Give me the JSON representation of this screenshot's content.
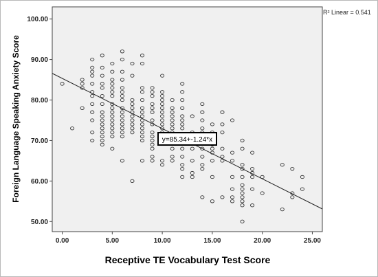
{
  "chart_data": {
    "type": "scatter",
    "title": "",
    "xlabel": "Receptive TE Vocabulary Test Score",
    "ylabel": "Foreign Language Speaking Anxiety Score",
    "xlim": [
      -1.0,
      26.0
    ],
    "ylim": [
      47.5,
      103.0
    ],
    "x_ticks": [
      0,
      5,
      10,
      15,
      20,
      25
    ],
    "x_tick_labels": [
      "0.00",
      "5.00",
      "10.00",
      "15.00",
      "20.00",
      "25.00"
    ],
    "y_ticks": [
      50,
      60,
      70,
      80,
      90,
      100
    ],
    "y_tick_labels": [
      "50.00",
      "60.00",
      "70.00",
      "80.00",
      "90.00",
      "100.00"
    ],
    "grid": false,
    "fit_line": {
      "intercept": 85.34,
      "slope": -1.24
    },
    "r2_label": "R² Linear = 0.541",
    "equation_label": "y=85.34+-1.24*x",
    "points": [
      [
        0,
        84
      ],
      [
        1,
        73
      ],
      [
        2,
        84
      ],
      [
        2,
        83
      ],
      [
        2,
        85
      ],
      [
        2,
        78
      ],
      [
        3,
        88
      ],
      [
        3,
        87
      ],
      [
        3,
        84
      ],
      [
        3,
        81
      ],
      [
        3,
        79
      ],
      [
        3,
        77
      ],
      [
        3,
        75
      ],
      [
        3,
        72
      ],
      [
        3,
        70
      ],
      [
        3,
        90
      ],
      [
        3,
        86
      ],
      [
        3,
        82
      ],
      [
        4,
        91
      ],
      [
        4,
        88
      ],
      [
        4,
        86
      ],
      [
        4,
        84
      ],
      [
        4,
        83
      ],
      [
        4,
        81
      ],
      [
        4,
        79
      ],
      [
        4,
        77
      ],
      [
        4,
        76
      ],
      [
        4,
        75
      ],
      [
        4,
        74
      ],
      [
        4,
        73
      ],
      [
        4,
        72
      ],
      [
        4,
        71
      ],
      [
        4,
        70
      ],
      [
        4,
        69
      ],
      [
        5,
        89
      ],
      [
        5,
        87
      ],
      [
        5,
        85
      ],
      [
        5,
        84
      ],
      [
        5,
        83
      ],
      [
        5,
        82
      ],
      [
        5,
        81
      ],
      [
        5,
        79
      ],
      [
        5,
        78
      ],
      [
        5,
        77
      ],
      [
        5,
        76
      ],
      [
        5,
        75
      ],
      [
        5,
        74
      ],
      [
        5,
        73
      ],
      [
        5,
        72
      ],
      [
        5,
        71
      ],
      [
        5,
        68
      ],
      [
        6,
        92
      ],
      [
        6,
        90
      ],
      [
        6,
        87
      ],
      [
        6,
        85
      ],
      [
        6,
        83
      ],
      [
        6,
        82
      ],
      [
        6,
        81
      ],
      [
        6,
        80
      ],
      [
        6,
        78
      ],
      [
        6,
        77
      ],
      [
        6,
        76
      ],
      [
        6,
        75
      ],
      [
        6,
        74
      ],
      [
        6,
        73
      ],
      [
        6,
        72
      ],
      [
        6,
        71
      ],
      [
        6,
        65
      ],
      [
        7,
        89
      ],
      [
        7,
        86
      ],
      [
        7,
        80
      ],
      [
        7,
        79
      ],
      [
        7,
        78
      ],
      [
        7,
        77
      ],
      [
        7,
        76
      ],
      [
        7,
        75
      ],
      [
        7,
        74
      ],
      [
        7,
        73
      ],
      [
        7,
        72
      ],
      [
        7,
        60
      ],
      [
        8,
        91
      ],
      [
        8,
        89
      ],
      [
        8,
        83
      ],
      [
        8,
        82
      ],
      [
        8,
        80
      ],
      [
        8,
        78
      ],
      [
        8,
        77
      ],
      [
        8,
        76
      ],
      [
        8,
        75
      ],
      [
        8,
        74
      ],
      [
        8,
        73
      ],
      [
        8,
        72
      ],
      [
        8,
        71
      ],
      [
        8,
        70
      ],
      [
        8,
        65
      ],
      [
        9,
        83
      ],
      [
        9,
        82
      ],
      [
        9,
        81
      ],
      [
        9,
        79
      ],
      [
        9,
        78
      ],
      [
        9,
        77
      ],
      [
        9,
        75
      ],
      [
        9,
        74
      ],
      [
        9,
        72
      ],
      [
        9,
        71
      ],
      [
        9,
        70
      ],
      [
        9,
        69
      ],
      [
        9,
        68
      ],
      [
        9,
        66
      ],
      [
        9,
        65
      ],
      [
        10,
        86
      ],
      [
        10,
        82
      ],
      [
        10,
        81
      ],
      [
        10,
        80
      ],
      [
        10,
        79
      ],
      [
        10,
        78
      ],
      [
        10,
        77
      ],
      [
        10,
        76
      ],
      [
        10,
        75
      ],
      [
        10,
        74
      ],
      [
        10,
        73
      ],
      [
        10,
        72
      ],
      [
        10,
        71
      ],
      [
        10,
        70
      ],
      [
        10,
        65
      ],
      [
        10,
        64
      ],
      [
        11,
        80
      ],
      [
        11,
        78
      ],
      [
        11,
        77
      ],
      [
        11,
        76
      ],
      [
        11,
        75
      ],
      [
        11,
        74
      ],
      [
        11,
        73
      ],
      [
        11,
        72
      ],
      [
        11,
        71
      ],
      [
        11,
        70
      ],
      [
        11,
        68
      ],
      [
        11,
        66
      ],
      [
        11,
        65
      ],
      [
        12,
        84
      ],
      [
        12,
        82
      ],
      [
        12,
        80
      ],
      [
        12,
        78
      ],
      [
        12,
        76
      ],
      [
        12,
        75
      ],
      [
        12,
        74
      ],
      [
        12,
        73
      ],
      [
        12,
        71
      ],
      [
        12,
        70
      ],
      [
        12,
        68
      ],
      [
        12,
        66
      ],
      [
        12,
        64
      ],
      [
        12,
        63
      ],
      [
        12,
        61
      ],
      [
        13,
        76
      ],
      [
        13,
        72
      ],
      [
        13,
        68
      ],
      [
        13,
        65
      ],
      [
        13,
        62
      ],
      [
        13,
        61
      ],
      [
        14,
        79
      ],
      [
        14,
        77
      ],
      [
        14,
        75
      ],
      [
        14,
        73
      ],
      [
        14,
        72
      ],
      [
        14,
        70
      ],
      [
        14,
        68
      ],
      [
        14,
        66
      ],
      [
        14,
        64
      ],
      [
        14,
        63
      ],
      [
        14,
        56
      ],
      [
        15,
        74
      ],
      [
        15,
        72
      ],
      [
        15,
        70
      ],
      [
        15,
        69
      ],
      [
        15,
        68
      ],
      [
        15,
        67
      ],
      [
        15,
        65
      ],
      [
        15,
        61
      ],
      [
        15,
        55
      ],
      [
        16,
        77
      ],
      [
        16,
        74
      ],
      [
        16,
        72
      ],
      [
        16,
        68
      ],
      [
        16,
        66
      ],
      [
        16,
        65
      ],
      [
        16,
        56
      ],
      [
        17,
        75
      ],
      [
        17,
        67
      ],
      [
        17,
        65
      ],
      [
        17,
        61
      ],
      [
        17,
        58
      ],
      [
        17,
        56
      ],
      [
        17,
        55
      ],
      [
        18,
        70
      ],
      [
        18,
        68
      ],
      [
        18,
        64
      ],
      [
        18,
        63
      ],
      [
        18,
        61
      ],
      [
        18,
        59
      ],
      [
        18,
        58
      ],
      [
        18,
        57
      ],
      [
        18,
        56
      ],
      [
        18,
        55
      ],
      [
        18,
        54
      ],
      [
        18,
        50
      ],
      [
        19,
        67
      ],
      [
        19,
        63
      ],
      [
        19,
        62
      ],
      [
        19,
        61
      ],
      [
        19,
        58
      ],
      [
        19,
        54
      ],
      [
        20,
        61
      ],
      [
        20,
        57
      ],
      [
        22,
        64
      ],
      [
        22,
        53
      ],
      [
        23,
        63
      ],
      [
        23,
        57
      ],
      [
        23,
        56
      ],
      [
        24,
        61
      ],
      [
        24,
        58
      ]
    ]
  }
}
